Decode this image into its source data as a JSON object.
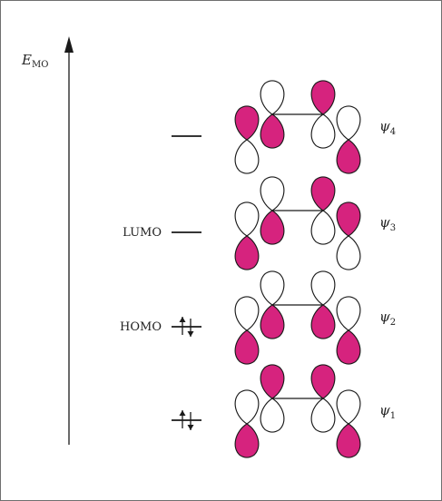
{
  "axis": {
    "symbol": "E",
    "subscript": "MO"
  },
  "colors": {
    "phase_shaded": "#d6237e",
    "phase_unshaded": "#ffffff",
    "line": "#1a1a1a"
  },
  "orbitals": [
    {
      "name": "ψ",
      "index": "4",
      "level_label": "",
      "electrons": 0,
      "phases": [
        [
          "shaded",
          "empty"
        ],
        [
          "empty",
          "shaded"
        ],
        [
          "shaded",
          "empty"
        ],
        [
          "empty",
          "shaded"
        ]
      ]
    },
    {
      "name": "ψ",
      "index": "3",
      "level_label": "LUMO",
      "electrons": 0,
      "phases": [
        [
          "empty",
          "shaded"
        ],
        [
          "empty",
          "shaded"
        ],
        [
          "shaded",
          "empty"
        ],
        [
          "shaded",
          "empty"
        ]
      ]
    },
    {
      "name": "ψ",
      "index": "2",
      "level_label": "HOMO",
      "electrons": 2,
      "phases": [
        [
          "empty",
          "shaded"
        ],
        [
          "empty",
          "shaded"
        ],
        [
          "empty",
          "shaded"
        ],
        [
          "empty",
          "shaded"
        ]
      ]
    },
    {
      "name": "ψ",
      "index": "1",
      "level_label": "",
      "electrons": 2,
      "phases": [
        [
          "empty",
          "shaded"
        ],
        [
          "shaded",
          "empty"
        ],
        [
          "shaded",
          "empty"
        ],
        [
          "empty",
          "shaded"
        ]
      ]
    }
  ]
}
